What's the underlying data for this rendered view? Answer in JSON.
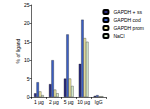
{
  "chart_data": {
    "type": "bar",
    "y_label": "% of ligand",
    "categories": [
      "1 µg",
      "2 µg",
      "5 µg",
      "10 µg",
      "IgG"
    ],
    "series": [
      {
        "name": "GAPDH + ss",
        "color": "#2e2e80",
        "values": [
          1,
          3.5,
          5,
          9,
          0.3
        ]
      },
      {
        "name": "GAPDH cod",
        "color": "#3b5fc4",
        "values": [
          4,
          10,
          17,
          21,
          0.5
        ]
      },
      {
        "name": "GAPDH prom",
        "color": "#f2eca8",
        "values": [
          1.5,
          2,
          5,
          16,
          0.2
        ]
      },
      {
        "name": "NaCl",
        "color": "#d6ebcc",
        "values": [
          0.5,
          1,
          3,
          15,
          0.2
        ]
      }
    ],
    "ylim": [
      0,
      25
    ],
    "yticks": [
      0,
      5,
      10,
      15,
      20,
      25
    ],
    "grid": false,
    "legend": "upper right"
  }
}
